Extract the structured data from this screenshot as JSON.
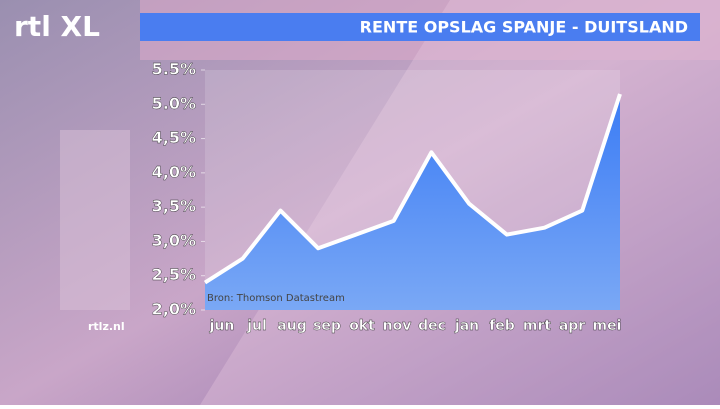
{
  "chart_data": {
    "type": "area",
    "title": "RENTE OPSLAG SPANJE - DUITSLAND",
    "source": "Bron: Thomson Datastream",
    "logo": "rtl XL",
    "website": "rtlz.nl",
    "categories": [
      "jun",
      "jul",
      "aug",
      "sep",
      "okt",
      "nov",
      "dec",
      "jan",
      "feb",
      "mrt",
      "apr",
      "mei"
    ],
    "values": [
      2.4,
      2.75,
      3.45,
      2.9,
      3.1,
      3.3,
      4.3,
      3.55,
      3.1,
      3.2,
      3.45,
      5.15
    ],
    "color": "#4f86f0",
    "line_color": "#ffffff",
    "ylim": [
      2.0,
      5.5
    ],
    "yticks": [
      {
        "value": 2.0,
        "label": "2,0%"
      },
      {
        "value": 2.5,
        "label": "2,5%"
      },
      {
        "value": 3.0,
        "label": "3,0%"
      },
      {
        "value": 3.5,
        "label": "3,5%"
      },
      {
        "value": 4.0,
        "label": "4,0%"
      },
      {
        "value": 4.5,
        "label": "4,5%"
      },
      {
        "value": 5.0,
        "label": "5.0%"
      },
      {
        "value": 5.5,
        "label": "5.5%"
      }
    ],
    "grid": false
  }
}
